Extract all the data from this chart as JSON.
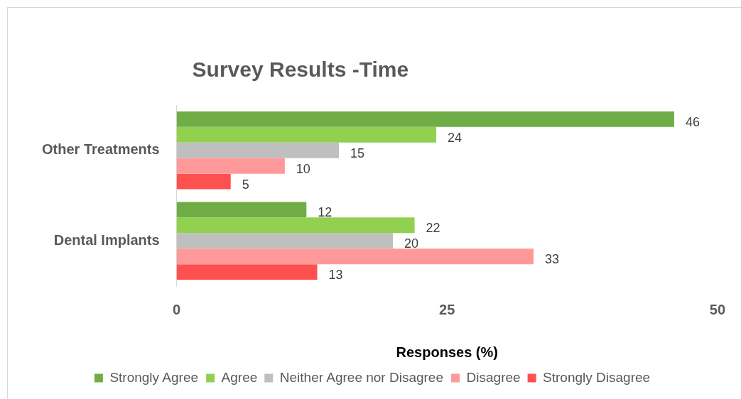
{
  "chart_data": {
    "type": "bar",
    "orientation": "horizontal",
    "title": "Survey Results -Time",
    "xlabel": "Responses (%)",
    "categories": [
      "Other Treatments",
      "Dental Implants"
    ],
    "series": [
      {
        "name": "Strongly Agree",
        "color": "#70ad47",
        "values": [
          46,
          12
        ]
      },
      {
        "name": "Agree",
        "color": "#92d050",
        "values": [
          24,
          22
        ]
      },
      {
        "name": "Neither Agree nor Disagree",
        "color": "#bfbfbf",
        "values": [
          15,
          20
        ]
      },
      {
        "name": "Disagree",
        "color": "#ff9999",
        "values": [
          10,
          33
        ]
      },
      {
        "name": "Strongly Disagree",
        "color": "#ff5050",
        "values": [
          5,
          13
        ]
      }
    ],
    "xlim": [
      0,
      50
    ],
    "xticks": [
      0,
      25,
      50
    ],
    "grid": false,
    "legend": "bottom",
    "data_labels": true
  }
}
